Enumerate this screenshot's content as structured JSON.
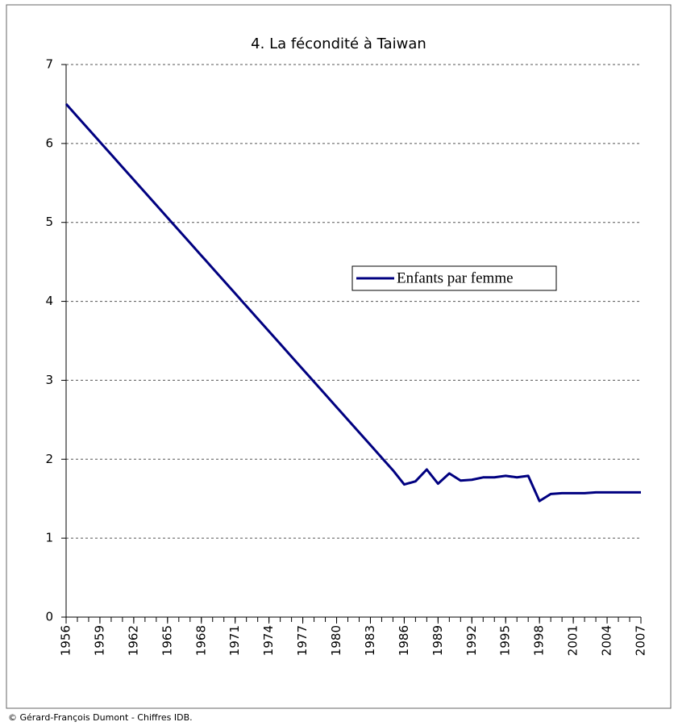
{
  "chart_data": {
    "type": "line",
    "title": "4. La fécondité à Taiwan",
    "x": [
      1956,
      1957,
      1958,
      1959,
      1960,
      1961,
      1962,
      1963,
      1964,
      1965,
      1966,
      1967,
      1968,
      1969,
      1970,
      1971,
      1972,
      1973,
      1974,
      1975,
      1976,
      1977,
      1978,
      1979,
      1980,
      1981,
      1982,
      1983,
      1984,
      1985,
      1986,
      1987,
      1988,
      1989,
      1990,
      1991,
      1992,
      1993,
      1994,
      1995,
      1996,
      1997,
      1998,
      1999,
      2000,
      2001,
      2002,
      2003,
      2004,
      2005,
      2006,
      2007
    ],
    "series": [
      {
        "name": "Enfants par femme",
        "color": "#000080",
        "values": [
          6.5,
          6.34,
          6.18,
          6.02,
          5.86,
          5.7,
          5.54,
          5.38,
          5.22,
          5.06,
          4.9,
          4.74,
          4.58,
          4.42,
          4.26,
          4.1,
          3.94,
          3.78,
          3.62,
          3.46,
          3.3,
          3.14,
          2.98,
          2.82,
          2.66,
          2.5,
          2.34,
          2.18,
          2.02,
          1.86,
          1.68,
          1.72,
          1.87,
          1.69,
          1.82,
          1.73,
          1.74,
          1.77,
          1.77,
          1.79,
          1.77,
          1.79,
          1.47,
          1.56,
          1.57,
          1.57,
          1.57,
          1.58,
          1.58,
          1.58,
          1.58,
          1.58
        ]
      }
    ],
    "xlim": [
      1956,
      2007
    ],
    "xticks": [
      1956,
      1959,
      1962,
      1965,
      1968,
      1971,
      1974,
      1977,
      1980,
      1983,
      1986,
      1989,
      1992,
      1995,
      1998,
      2001,
      2004,
      2007
    ],
    "ylim": [
      0,
      7
    ],
    "yticks": [
      0,
      1,
      2,
      3,
      4,
      5,
      6,
      7
    ],
    "grid": true,
    "legend": "center-right"
  },
  "footer": "© Gérard-François Dumont - Chiffres IDB."
}
